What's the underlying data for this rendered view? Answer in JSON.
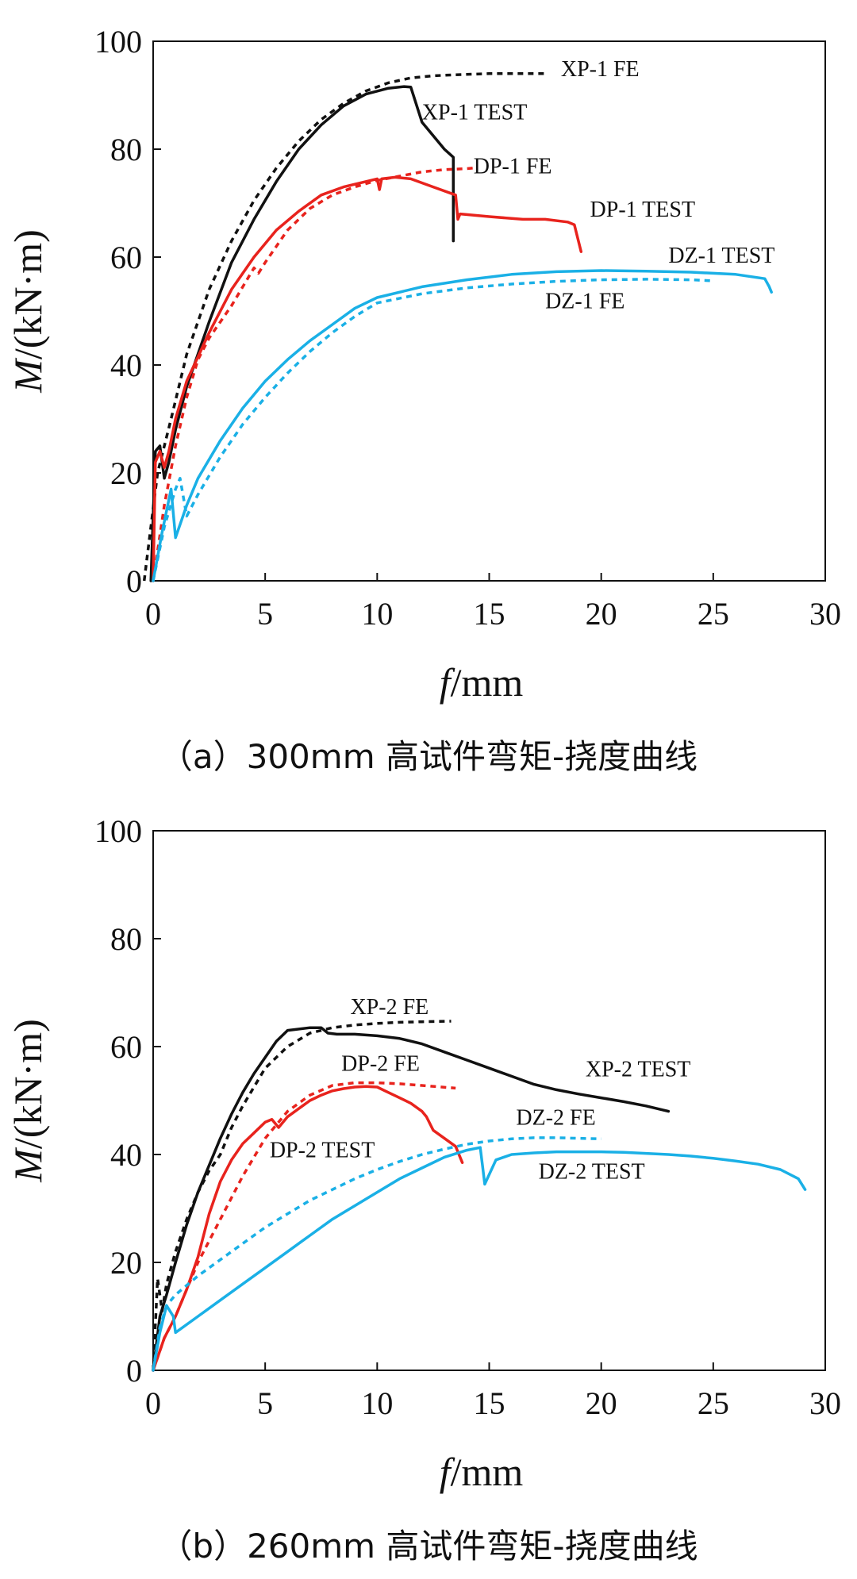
{
  "colors": {
    "xp": "#111111",
    "dp": "#e8231d",
    "dz": "#1ab0e6"
  },
  "chart_data": [
    {
      "type": "line",
      "title": "",
      "caption": "（a）300mm 高试件弯矩-挠度曲线",
      "xlabel_italic": "f",
      "xlabel_unit": "/mm",
      "ylabel_italic": "M",
      "ylabel_unit": "/(kN·m)",
      "xlim": [
        0,
        30
      ],
      "ylim": [
        0,
        100
      ],
      "xticks": [
        "0",
        "5",
        "10",
        "15",
        "20",
        "25",
        "30"
      ],
      "yticks": [
        "0",
        "20",
        "40",
        "60",
        "80",
        "100"
      ],
      "series": [
        {
          "name": "XP-1 FE",
          "style": "dashed",
          "color": "xp",
          "x": [
            -0.4,
            0.2,
            0.8,
            1.5,
            2.5,
            3.5,
            4.5,
            5.5,
            6.5,
            7.5,
            8.5,
            9.5,
            10.5,
            11.5,
            12.5,
            13.5,
            15,
            17.5
          ],
          "y": [
            0,
            20,
            30,
            42,
            54,
            63,
            70.5,
            76.5,
            81.5,
            85.5,
            88.5,
            90.8,
            92.3,
            93.2,
            93.6,
            93.8,
            94,
            94
          ]
        },
        {
          "name": "XP-1 TEST",
          "style": "solid",
          "color": "xp",
          "x": [
            -0.1,
            0.1,
            0.3,
            0.5,
            0.7,
            1.0,
            1.5,
            2.5,
            3.5,
            4.5,
            5.5,
            6.5,
            7.5,
            8.5,
            9.5,
            10.5,
            11.2,
            11.5,
            12.0,
            13.0,
            13.4,
            13.4
          ],
          "y": [
            0,
            24,
            25,
            19,
            22,
            28,
            36,
            48,
            59,
            67,
            74,
            80,
            84.5,
            88,
            90.2,
            91.3,
            91.6,
            91.5,
            85,
            80,
            78.5,
            63
          ]
        },
        {
          "name": "DP-1 FE",
          "style": "dashed",
          "color": "dp",
          "x": [
            0,
            0.5,
            1.0,
            1.5,
            2,
            2.5,
            3.5,
            4.5,
            4.7,
            5,
            6,
            7,
            8,
            9,
            10,
            11,
            12,
            13,
            14,
            14.3
          ],
          "y": [
            0,
            14,
            25,
            34,
            41,
            45,
            51,
            58,
            57,
            59,
            65,
            69,
            71.5,
            73,
            74.2,
            75,
            75.8,
            76.2,
            76.4,
            76.5
          ]
        },
        {
          "name": "DP-1 TEST",
          "style": "solid",
          "color": "dp",
          "x": [
            0,
            0.1,
            0.3,
            0.5,
            0.7,
            1.0,
            1.5,
            2.5,
            3.5,
            4.5,
            5.5,
            6.5,
            7.5,
            8.5,
            9.5,
            10.0,
            10.1,
            10.2,
            10.8,
            11.5,
            12.5,
            13.5,
            13.6,
            13.7,
            15.0,
            16.5,
            17.5,
            18.5,
            18.8,
            19.1
          ],
          "y": [
            0,
            22,
            24,
            21,
            24,
            30,
            37,
            46,
            54,
            60,
            65,
            68.5,
            71.5,
            73,
            74,
            74.5,
            72.5,
            74.5,
            74.8,
            74.5,
            73,
            71.5,
            67,
            68,
            67.5,
            67,
            67,
            66.5,
            66,
            61
          ]
        },
        {
          "name": "DZ-1 FE",
          "style": "dashed",
          "color": "dz",
          "x": [
            0,
            0.5,
            1.0,
            1.2,
            1.5,
            2,
            3,
            4,
            5,
            6,
            7,
            8,
            9,
            10,
            12,
            14,
            16,
            18,
            20,
            22,
            24,
            25
          ],
          "y": [
            0,
            10,
            17,
            19,
            12,
            16,
            23,
            29,
            34,
            38.5,
            42.5,
            46,
            49,
            51.5,
            53.2,
            54.3,
            55,
            55.5,
            55.8,
            55.9,
            55.8,
            55.6
          ]
        },
        {
          "name": "DZ-1 TEST",
          "style": "solid",
          "color": "dz",
          "x": [
            0,
            0.4,
            0.8,
            1.0,
            1.5,
            2,
            3,
            4,
            5,
            6,
            7,
            8,
            9,
            10,
            12,
            14,
            16,
            18,
            20,
            22,
            24,
            26,
            27.3,
            27.5,
            27.6
          ],
          "y": [
            0,
            9,
            17,
            8,
            14,
            19,
            26,
            32,
            37,
            41,
            44.5,
            47.5,
            50.5,
            52.5,
            54.5,
            55.8,
            56.8,
            57.3,
            57.5,
            57.4,
            57.2,
            56.8,
            56,
            54.5,
            53.5
          ]
        }
      ],
      "annotations": [
        {
          "text": "XP-1 FE",
          "x": 18.2,
          "y": 93.5
        },
        {
          "text": "XP-1 TEST",
          "x": 12.0,
          "y": 85.5
        },
        {
          "text": "DP-1 FE",
          "x": 14.3,
          "y": 75.5
        },
        {
          "text": "DP-1 TEST",
          "x": 19.5,
          "y": 67.5
        },
        {
          "text": "DZ-1 TEST",
          "x": 23.0,
          "y": 59.0
        },
        {
          "text": "DZ-1 FE",
          "x": 17.5,
          "y": 50.5
        }
      ]
    },
    {
      "type": "line",
      "title": "",
      "caption": "（b）260mm 高试件弯矩-挠度曲线",
      "xlabel_italic": "f",
      "xlabel_unit": "/mm",
      "ylabel_italic": "M",
      "ylabel_unit": "/(kN·m)",
      "xlim": [
        0,
        30
      ],
      "ylim": [
        0,
        100
      ],
      "xticks": [
        "0",
        "5",
        "10",
        "15",
        "20",
        "25",
        "30"
      ],
      "yticks": [
        "0",
        "20",
        "40",
        "60",
        "80",
        "100"
      ],
      "series": [
        {
          "name": "XP-2 FE",
          "style": "dashed",
          "color": "xp",
          "x": [
            0,
            0.2,
            0.4,
            0.6,
            1.0,
            1.5,
            2.0,
            2.5,
            3.0,
            3.5,
            4,
            5,
            6,
            7,
            8,
            9,
            10,
            11,
            12,
            13.3
          ],
          "y": [
            0,
            17,
            11,
            16,
            22,
            28,
            33,
            37,
            40,
            45,
            49,
            56,
            60,
            62.5,
            63.5,
            64,
            64.3,
            64.5,
            64.6,
            64.7
          ]
        },
        {
          "name": "XP-2 TEST",
          "style": "solid",
          "color": "xp",
          "x": [
            0,
            0.3,
            0.6,
            1.0,
            1.5,
            2.0,
            2.5,
            3.0,
            3.5,
            4,
            4.5,
            5,
            5.5,
            6.0,
            7.0,
            7.5,
            7.8,
            8.2,
            9,
            10,
            11,
            12,
            13,
            14,
            15,
            16,
            17,
            18,
            19,
            20,
            21,
            22,
            23.0
          ],
          "y": [
            0,
            10,
            14,
            20,
            27,
            33,
            38,
            43,
            47.5,
            51.5,
            55,
            58,
            61,
            63,
            63.5,
            63.5,
            62.5,
            62.3,
            62.3,
            62,
            61.5,
            60.5,
            59,
            57.5,
            56,
            54.5,
            53,
            52,
            51.2,
            50.5,
            49.8,
            49,
            48
          ]
        },
        {
          "name": "DP-2 FE",
          "style": "dashed",
          "color": "dp",
          "x": [
            0,
            0.5,
            1.0,
            1.5,
            2,
            3,
            4,
            5,
            6,
            7,
            8,
            9,
            10,
            11,
            12,
            13.5
          ],
          "y": [
            0,
            6,
            10,
            15,
            20,
            28,
            36,
            43,
            48,
            51,
            52.8,
            53.3,
            53.3,
            53.1,
            52.8,
            52.3
          ]
        },
        {
          "name": "DP-2 TEST",
          "style": "solid",
          "color": "dp",
          "x": [
            0,
            0.5,
            1.0,
            1.5,
            2.0,
            2.5,
            3.0,
            3.5,
            4.0,
            4.5,
            5.0,
            5.3,
            5.6,
            6.0,
            6.5,
            7.0,
            7.5,
            8.0,
            8.5,
            9.0,
            9.5,
            10.0,
            10.5,
            11.0,
            11.5,
            12.0,
            12.2,
            12.5,
            13.0,
            13.5,
            13.8
          ],
          "y": [
            0,
            6,
            10,
            15,
            21,
            29,
            35,
            39,
            42,
            44,
            46,
            46.5,
            45,
            47,
            48.5,
            50,
            51,
            51.8,
            52.2,
            52.5,
            52.6,
            52.5,
            51.5,
            50.5,
            49.5,
            48,
            47,
            44.5,
            43,
            41.5,
            38.5
          ]
        },
        {
          "name": "DZ-2 FE",
          "style": "dashed",
          "color": "dz",
          "x": [
            0,
            0.3,
            0.6,
            1.0,
            2,
            3,
            4,
            5,
            6,
            7,
            8,
            9,
            10,
            11,
            12,
            13,
            14,
            15,
            16,
            17,
            18,
            19,
            20
          ],
          "y": [
            0,
            8,
            12,
            14,
            17.5,
            20.5,
            23.5,
            26.5,
            29,
            31.5,
            33.5,
            35.5,
            37.2,
            38.7,
            40,
            41,
            41.9,
            42.5,
            42.9,
            43.1,
            43.1,
            43,
            42.9
          ]
        },
        {
          "name": "DZ-2 TEST",
          "style": "solid",
          "color": "dz",
          "x": [
            0,
            0.3,
            0.6,
            0.9,
            1.0,
            2,
            3,
            4,
            5,
            6,
            7,
            8,
            9,
            10,
            11,
            12,
            13,
            14,
            14.6,
            14.7,
            14.8,
            15.3,
            16,
            17,
            18,
            19,
            20,
            21,
            22,
            23,
            24,
            25,
            26,
            27,
            28,
            28.8,
            29.1
          ],
          "y": [
            0,
            7,
            12,
            10,
            7,
            10,
            13,
            16,
            19,
            22,
            25,
            28,
            30.5,
            33,
            35.5,
            37.5,
            39.5,
            40.8,
            41.3,
            38,
            34.5,
            39,
            40,
            40.3,
            40.5,
            40.5,
            40.5,
            40.4,
            40.2,
            40,
            39.7,
            39.3,
            38.8,
            38.2,
            37.2,
            35.5,
            33.5
          ]
        }
      ],
      "annotations": [
        {
          "text": "XP-2 FE",
          "x": 8.8,
          "y": 66.0
        },
        {
          "text": "DP-2 FE",
          "x": 8.4,
          "y": 55.5
        },
        {
          "text": "XP-2 TEST",
          "x": 19.3,
          "y": 54.5
        },
        {
          "text": "DZ-2 FE",
          "x": 16.2,
          "y": 45.5
        },
        {
          "text": "DP-2 TEST",
          "x": 5.2,
          "y": 39.5
        },
        {
          "text": "DZ-2 TEST",
          "x": 17.2,
          "y": 35.5
        }
      ]
    }
  ]
}
